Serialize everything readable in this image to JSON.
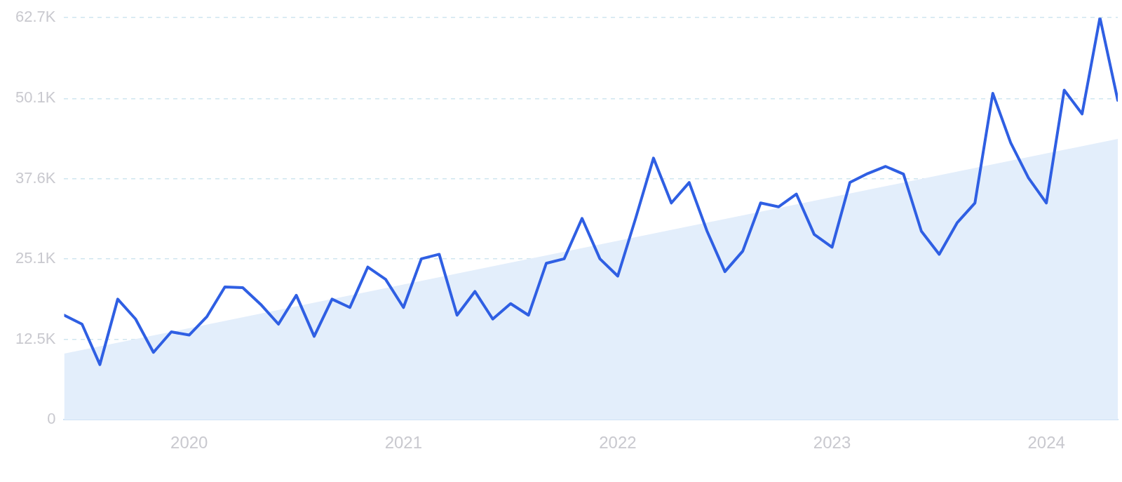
{
  "chart_data": {
    "type": "line",
    "x": [
      "2019-06",
      "2019-07",
      "2019-08",
      "2019-09",
      "2019-10",
      "2019-11",
      "2019-12",
      "2020-01",
      "2020-02",
      "2020-03",
      "2020-04",
      "2020-05",
      "2020-06",
      "2020-07",
      "2020-08",
      "2020-09",
      "2020-10",
      "2020-11",
      "2020-12",
      "2021-01",
      "2021-02",
      "2021-03",
      "2021-04",
      "2021-05",
      "2021-06",
      "2021-07",
      "2021-08",
      "2021-09",
      "2021-10",
      "2021-11",
      "2021-12",
      "2022-01",
      "2022-02",
      "2022-03",
      "2022-04",
      "2022-05",
      "2022-06",
      "2022-07",
      "2022-08",
      "2022-09",
      "2022-10",
      "2022-11",
      "2022-12",
      "2023-01",
      "2023-02",
      "2023-03",
      "2023-04",
      "2023-05",
      "2023-06",
      "2023-07",
      "2023-08",
      "2023-09",
      "2023-10",
      "2023-11",
      "2023-12",
      "2024-01",
      "2024-02",
      "2024-03",
      "2024-04",
      "2024-05"
    ],
    "series": [
      {
        "type": "area",
        "color": "#e3eefb",
        "x": [
          "2019-06",
          "2024-05"
        ],
        "values": [
          10.3,
          43.8
        ]
      },
      {
        "color": "#2f5fe3",
        "values": [
          16.3,
          14.9,
          8.6,
          18.8,
          15.7,
          10.5,
          13.7,
          13.2,
          16.1,
          20.7,
          20.6,
          18.0,
          14.9,
          19.4,
          13.0,
          18.8,
          17.5,
          23.8,
          21.9,
          17.5,
          25.1,
          25.8,
          16.3,
          20.0,
          15.7,
          18.1,
          16.3,
          24.4,
          25.1,
          31.4,
          25.1,
          22.4,
          31.4,
          40.8,
          33.8,
          37.0,
          29.4,
          23.1,
          26.3,
          33.8,
          33.2,
          35.2,
          28.9,
          26.9,
          37.0,
          38.4,
          39.5,
          38.3,
          29.4,
          25.8,
          30.7,
          33.8,
          50.9,
          43.2,
          37.7,
          33.8,
          51.4,
          47.7,
          62.7,
          49.8
        ]
      }
    ],
    "xlim": [
      "2019-06",
      "2024-05"
    ],
    "xticks": [
      {
        "value": "2020-01",
        "label": "2020"
      },
      {
        "value": "2021-01",
        "label": "2021"
      },
      {
        "value": "2022-01",
        "label": "2022"
      },
      {
        "value": "2023-01",
        "label": "2023"
      },
      {
        "value": "2024-01",
        "label": "2024"
      }
    ],
    "ylim": [
      0,
      62.7
    ],
    "yticks": [
      {
        "value": 0,
        "label": "0"
      },
      {
        "value": 12.5,
        "label": "12.5K"
      },
      {
        "value": 25.1,
        "label": "25.1K"
      },
      {
        "value": 37.6,
        "label": "37.6K"
      },
      {
        "value": 50.1,
        "label": "50.1K"
      },
      {
        "value": 62.7,
        "label": "62.7K"
      }
    ],
    "grid": "y",
    "legend": false,
    "marker": "none",
    "line_style": "solid"
  }
}
